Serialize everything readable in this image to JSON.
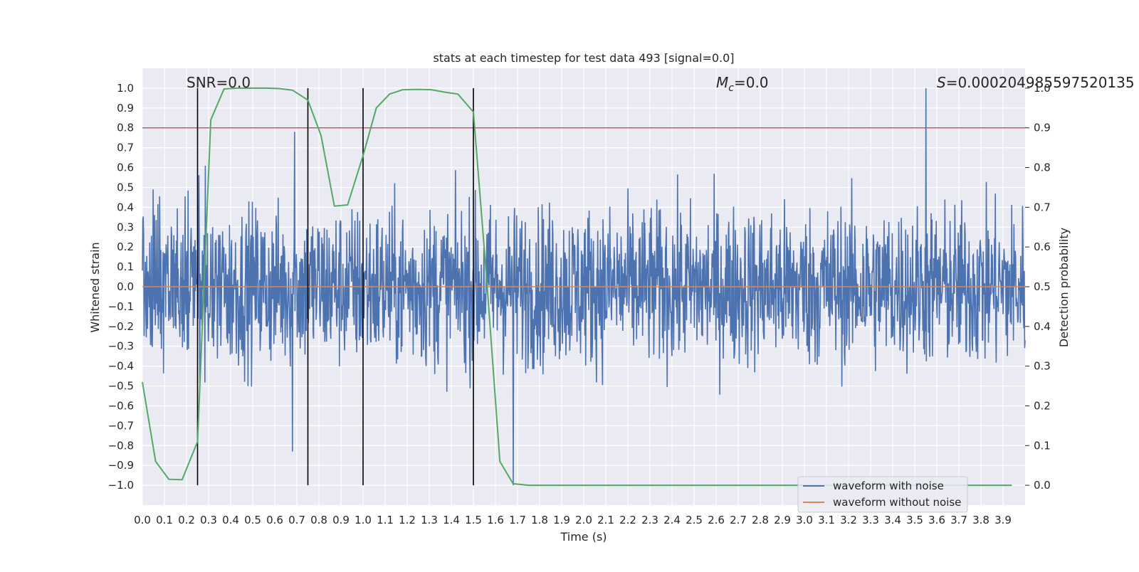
{
  "chart_data": {
    "type": "line",
    "title": "stats at each timestep for test data 493 [signal=0.0]",
    "xlabel": "Time (s)",
    "ylabel": "Whitened strain",
    "y2label": "Detection probability",
    "xlim": [
      0.0,
      4.0
    ],
    "ylim": [
      -1.1,
      1.1
    ],
    "y2lim": [
      -0.05,
      1.05
    ],
    "xticks": [
      "0.0",
      "0.1",
      "0.2",
      "0.3",
      "0.4",
      "0.5",
      "0.6",
      "0.7",
      "0.8",
      "0.9",
      "1.0",
      "1.1",
      "1.2",
      "1.3",
      "1.4",
      "1.5",
      "1.6",
      "1.7",
      "1.8",
      "1.9",
      "2.0",
      "2.1",
      "2.2",
      "2.3",
      "2.4",
      "2.5",
      "2.6",
      "2.7",
      "2.8",
      "2.9",
      "3.0",
      "3.1",
      "3.2",
      "3.3",
      "3.4",
      "3.5",
      "3.6",
      "3.7",
      "3.8",
      "3.9"
    ],
    "yticks": [
      "1.0",
      "0.9",
      "0.8",
      "0.7",
      "0.6",
      "0.5",
      "0.4",
      "0.3",
      "0.2",
      "0.1",
      "0.0",
      "-0.1",
      "-0.2",
      "-0.3",
      "-0.4",
      "-0.5",
      "-0.6",
      "-0.7",
      "-0.8",
      "-0.9",
      "-1.0"
    ],
    "y2ticks": [
      "1.0",
      "0.9",
      "0.8",
      "0.7",
      "0.6",
      "0.5",
      "0.4",
      "0.3",
      "0.2",
      "0.1",
      "0.0"
    ],
    "grid": true,
    "legend_position": "lower-right",
    "annotations": {
      "snr": "SNR=0.0",
      "mc_symbol": "M",
      "mc_sub": "c",
      "mc_value": "=0.0",
      "s_symbol": "S",
      "s_value": "=0.000204985597520135"
    },
    "series": [
      {
        "name": "waveform with noise",
        "color": "#4c72b0",
        "axis": "left",
        "description_range": [
          -1.0,
          1.0
        ],
        "notable_peaks": [
          {
            "x": 3.55,
            "y": 1.0
          },
          {
            "x": 1.68,
            "y": -1.0
          },
          {
            "x": 0.68,
            "y": -0.83
          },
          {
            "x": 0.69,
            "y": 0.78
          }
        ]
      },
      {
        "name": "waveform without noise",
        "color": "#dd8452",
        "axis": "left",
        "x": [
          0.0,
          4.0
        ],
        "y": [
          0.0,
          0.0
        ]
      },
      {
        "color": "#55a868",
        "axis": "right",
        "x": [
          0.0,
          0.06,
          0.12,
          0.18,
          0.25,
          0.31,
          0.37,
          0.43,
          0.5,
          0.56,
          0.62,
          0.68,
          0.75,
          0.81,
          0.87,
          0.93,
          1.0,
          1.06,
          1.12,
          1.18,
          1.25,
          1.31,
          1.37,
          1.43,
          1.5,
          1.56,
          1.62,
          1.68,
          1.75,
          1.81,
          3.94
        ],
        "y": [
          0.26,
          0.06,
          0.015,
          0.014,
          0.11,
          0.92,
          0.998,
          1.0,
          1.0,
          1.0,
          0.999,
          0.995,
          0.97,
          0.88,
          0.703,
          0.706,
          0.83,
          0.95,
          0.985,
          0.996,
          0.997,
          0.996,
          0.99,
          0.985,
          0.94,
          0.52,
          0.06,
          0.004,
          0.0,
          0.0,
          0.0
        ]
      }
    ],
    "threshold_line": {
      "axis": "right",
      "y": 0.9,
      "color": "#c44e52"
    },
    "vertical_lines": [
      0.25,
      0.75,
      1.0,
      1.5
    ]
  }
}
